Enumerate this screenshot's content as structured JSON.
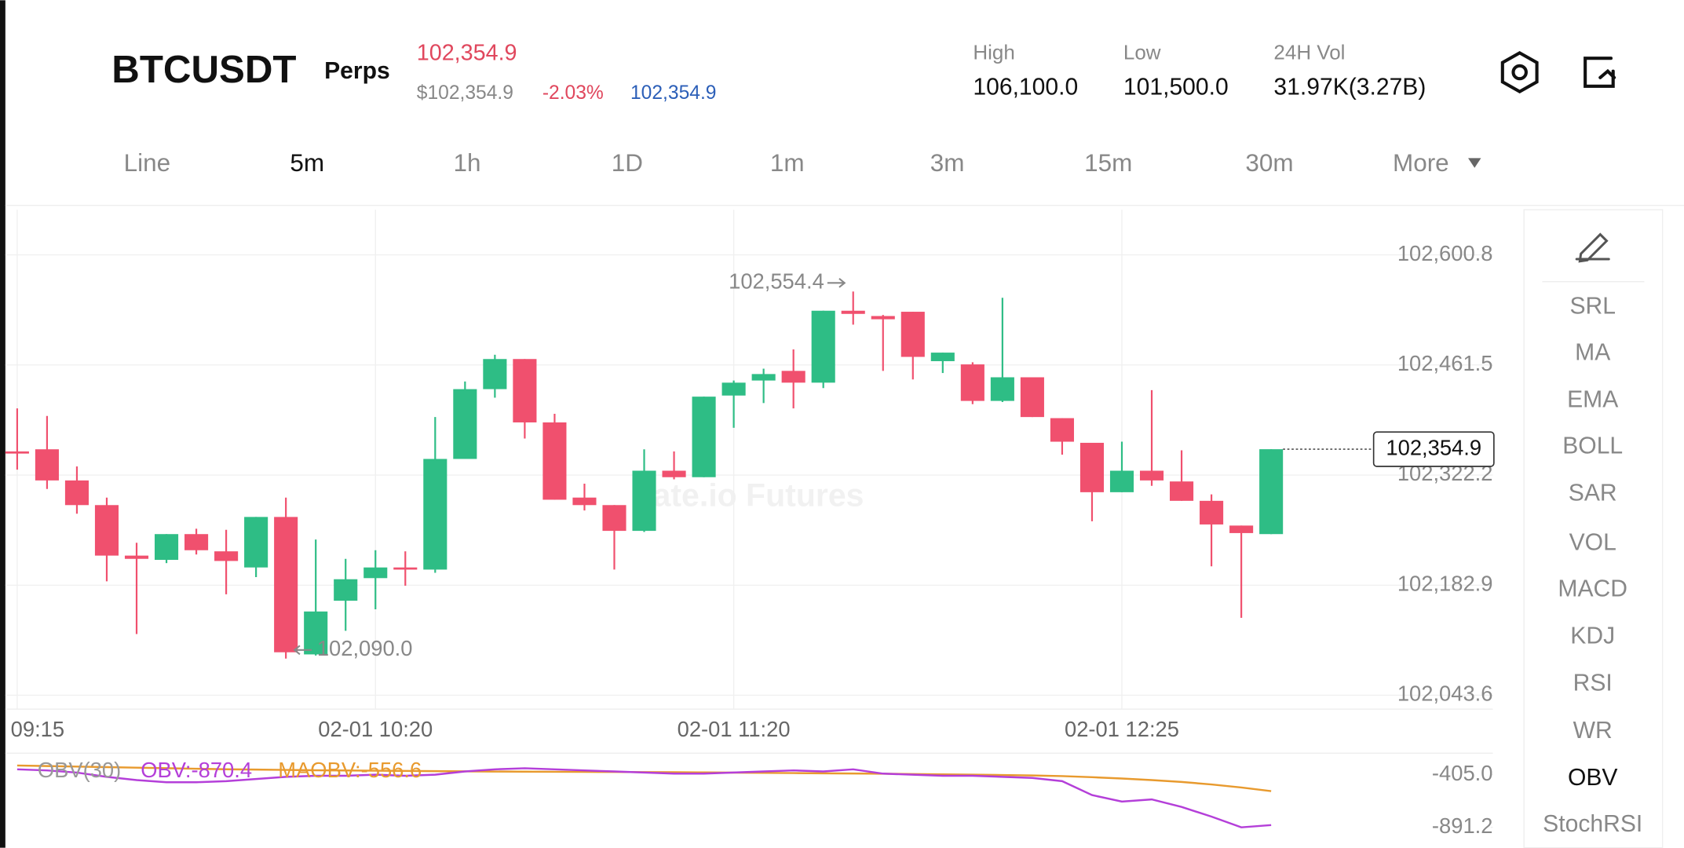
{
  "header": {
    "symbol": "BTCUSDT",
    "contract": "Perps",
    "last_price": "102,354.9",
    "mark_price": "$102,354.9",
    "change": "-2.03%",
    "index_price": "102,354.9",
    "stats": [
      {
        "label": "High",
        "value": "106,100.0"
      },
      {
        "label": "Low",
        "value": "101,500.0"
      },
      {
        "label": "24H Vol",
        "value": "31.97K(3.27B)"
      }
    ]
  },
  "tabs": [
    "Line",
    "5m",
    "1h",
    "1D",
    "1m",
    "3m",
    "15m",
    "30m",
    "More"
  ],
  "selected_tab": 1,
  "indicators": [
    "SRL",
    "MA",
    "EMA",
    "BOLL",
    "SAR",
    "VOL",
    "MACD",
    "KDJ",
    "RSI",
    "WR",
    "OBV",
    "StochRSI"
  ],
  "selected_indicator": 10,
  "chart_data": [
    {
      "type": "candlestick",
      "watermark": "gate.io Futures",
      "categories": [
        "09:15",
        null,
        null,
        null,
        null,
        null,
        null,
        null,
        null,
        null,
        null,
        null,
        "02-01 10:20",
        null,
        null,
        null,
        null,
        null,
        null,
        null,
        null,
        null,
        null,
        null,
        "02-01 11:20",
        null,
        null,
        null,
        null,
        null,
        null,
        null,
        null,
        null,
        null,
        null,
        null,
        "02-01 12:25",
        null,
        null,
        null,
        null,
        null
      ],
      "open": [
        102352.1,
        102354.8,
        102315.4,
        102284.2,
        102220.3,
        102214.9,
        102247.5,
        102225.7,
        102205.3,
        102269.2,
        102095.3,
        102163.2,
        102191.8,
        102205.3,
        102202.6,
        102342.6,
        102430.9,
        102469.0,
        102388.8,
        102293.7,
        102284.2,
        102251.6,
        102327.7,
        102319.5,
        102422.8,
        102441.8,
        102454.0,
        102439.1,
        102530.1,
        102523.4,
        102528.8,
        102466.3,
        102462.2,
        102416.0,
        102445.9,
        102394.2,
        102363.0,
        102300.5,
        102327.7,
        102314.1,
        102289.6,
        102258.3,
        102247.5
      ],
      "high": [
        102406.5,
        102397.0,
        102333.1,
        102293.7,
        102236.6,
        102247.5,
        102254.3,
        102252.9,
        102269.2,
        102293.7,
        102240.7,
        102216.2,
        102227.1,
        102225.7,
        102395.6,
        102440.5,
        102474.4,
        102469.0,
        102399.7,
        102311.3,
        102284.2,
        102354.8,
        102352.1,
        102421.4,
        102441.8,
        102456.8,
        102481.2,
        102530.1,
        102554.4,
        102524.7,
        102528.8,
        102477.1,
        102464.9,
        102546.5,
        102445.9,
        102394.2,
        102363.0,
        102364.4,
        102429.6,
        102353.5,
        102297.8,
        102258.3,
        102354.9
      ],
      "low": [
        102329.0,
        102304.6,
        102273.3,
        102187.7,
        102121.1,
        102210.8,
        102221.7,
        102171.4,
        102193.1,
        102090.0,
        102093.9,
        102125.2,
        102152.3,
        102182.2,
        102198.6,
        102342.6,
        102420.1,
        102368.4,
        102291.0,
        102277.4,
        102202.6,
        102250.2,
        102316.8,
        102319.5,
        102382.0,
        102413.3,
        102406.5,
        102432.3,
        102512.5,
        102454.0,
        102443.2,
        102451.3,
        102411.9,
        102414.6,
        102395.6,
        102348.0,
        102263.8,
        102300.5,
        102308.6,
        102289.6,
        102206.7,
        102141.5,
        102247.5
      ],
      "close": [
        102349.4,
        102315.4,
        102284.2,
        102220.3,
        102216.2,
        102247.5,
        102227.1,
        102213.5,
        102269.2,
        102098.0,
        102149.6,
        102190.4,
        102205.3,
        102202.6,
        102342.6,
        102430.9,
        102469.0,
        102388.8,
        102291.0,
        102284.2,
        102251.6,
        102327.7,
        102319.5,
        102421.4,
        102439.1,
        102450.0,
        102439.1,
        102530.1,
        102526.1,
        102519.3,
        102471.7,
        102477.1,
        102416.0,
        102445.9,
        102395.6,
        102364.4,
        102300.5,
        102327.7,
        102315.4,
        102289.6,
        102259.7,
        102248.8,
        102354.9
      ],
      "up_color": "#2ebd85",
      "down_color": "#f0506e",
      "ylim": [
        102026.0,
        102657.9
      ],
      "yticks": [
        {
          "value": 102600.8,
          "label": "102,600.8"
        },
        {
          "value": 102461.5,
          "label": "102,461.5"
        },
        {
          "value": 102322.2,
          "label": "102,322.2"
        },
        {
          "value": 102182.9,
          "label": "102,182.9"
        },
        {
          "value": 102043.6,
          "label": "102,043.6"
        }
      ],
      "grid": true,
      "last_price": {
        "value": 102354.9,
        "label": "102,354.9"
      },
      "max_label": {
        "value": 102554.4,
        "label": "102,554.4"
      },
      "min_label": {
        "value": 102090.0,
        "label": "102,090.0"
      }
    },
    {
      "type": "line",
      "title": "OBV(30)",
      "categories": [
        null,
        null,
        null,
        null,
        null,
        null,
        null,
        null,
        null,
        null,
        null,
        null,
        null,
        null,
        null,
        null,
        null,
        null,
        null,
        null,
        null,
        null,
        null,
        null,
        null,
        null,
        null,
        null,
        null,
        null,
        null,
        null,
        null,
        null,
        null,
        null,
        null,
        null,
        null,
        null,
        null,
        null,
        null
      ],
      "series": [
        {
          "name": "OBV:-870.4",
          "color": "#b43fd9",
          "values": [
            -355.4,
            -365.3,
            -385.2,
            -424.8,
            -454.6,
            -474.5,
            -474.5,
            -464.5,
            -444.7,
            -424.8,
            -414.9,
            -414.9,
            -405.0,
            -414.9,
            -405.0,
            -375.2,
            -355.4,
            -345.5,
            -355.4,
            -365.3,
            -375.2,
            -385.2,
            -395.1,
            -395.1,
            -385.2,
            -375.2,
            -365.3,
            -375.2,
            -355.4,
            -395.1,
            -405.0,
            -414.9,
            -414.9,
            -424.8,
            -434.8,
            -464.5,
            -593.5,
            -653.1,
            -633.2,
            -702.7,
            -792.0,
            -891.2,
            -870.4
          ]
        },
        {
          "name": "MAOBV:-556.6",
          "color": "#e89a2e",
          "values": [
            -320,
            -325,
            -330,
            -335,
            -340,
            -345,
            -350,
            -355,
            -358,
            -361,
            -364,
            -366,
            -368,
            -370,
            -372,
            -374,
            -376,
            -377,
            -378,
            -379,
            -380,
            -381,
            -382,
            -384,
            -386,
            -388,
            -390,
            -392,
            -394,
            -396,
            -399,
            -402,
            -405,
            -408,
            -412,
            -418,
            -428,
            -440,
            -455,
            -472,
            -495,
            -523,
            -556.6
          ]
        }
      ],
      "ylim": [
        -1079.7,
        -226.4
      ],
      "yticks": [
        {
          "value": -405.0,
          "label": "-405.0"
        },
        {
          "value": -891.2,
          "label": "-891.2"
        }
      ]
    }
  ]
}
